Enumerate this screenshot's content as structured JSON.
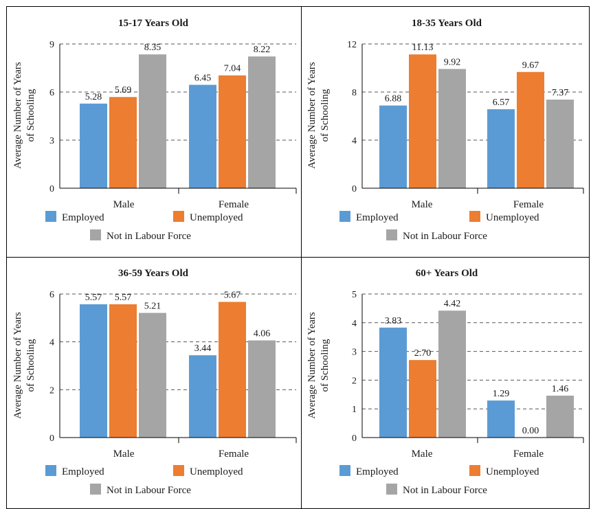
{
  "chart_data": [
    {
      "type": "bar",
      "title": "15-17 Years Old",
      "ylabel": "Average Number of Years of Schooling",
      "ylabel_lines": [
        "Average Number of Years",
        "of Schooling"
      ],
      "categories": [
        "Male",
        "Female"
      ],
      "ylim": [
        0,
        9
      ],
      "yticks": [
        0,
        3,
        6,
        9
      ],
      "grid": true,
      "legend": "bottom",
      "series": [
        {
          "name": "Employed",
          "values": [
            5.28,
            6.45
          ],
          "labels": [
            "5.28",
            "6.45"
          ],
          "color": "#5b9bd5"
        },
        {
          "name": "Unemployed",
          "values": [
            5.69,
            7.04
          ],
          "labels": [
            "5.69",
            "7.04"
          ],
          "color": "#ed7d31"
        },
        {
          "name": "Not in Labour Force",
          "values": [
            8.35,
            8.22
          ],
          "labels": [
            "8.35",
            "8.22"
          ],
          "color": "#a5a5a5"
        }
      ]
    },
    {
      "type": "bar",
      "title": "18-35 Years Old",
      "ylabel": "Average Number of Years of Schooling",
      "ylabel_lines": [
        "Average Number of Years",
        "of Schooling"
      ],
      "categories": [
        "Male",
        "Female"
      ],
      "ylim": [
        0,
        12
      ],
      "yticks": [
        0,
        4,
        8,
        12
      ],
      "grid": true,
      "legend": "bottom",
      "series": [
        {
          "name": "Employed",
          "values": [
            6.88,
            6.57
          ],
          "labels": [
            "6.88",
            "6.57"
          ],
          "color": "#5b9bd5"
        },
        {
          "name": "Unemployed",
          "values": [
            11.13,
            9.67
          ],
          "labels": [
            "11.13",
            "9.67"
          ],
          "color": "#ed7d31"
        },
        {
          "name": "Not in Labour Force",
          "values": [
            9.92,
            7.37
          ],
          "labels": [
            "9.92",
            "7.37"
          ],
          "color": "#a5a5a5"
        }
      ]
    },
    {
      "type": "bar",
      "title": "36-59 Years Old",
      "ylabel": "Average Number of Years of Schooling",
      "ylabel_lines": [
        "Average Number of Years",
        "of Schooling"
      ],
      "categories": [
        "Male",
        "Female"
      ],
      "ylim": [
        0,
        6
      ],
      "yticks": [
        0,
        2,
        4,
        6
      ],
      "grid": true,
      "legend": "bottom",
      "series": [
        {
          "name": "Employed",
          "values": [
            5.57,
            3.44
          ],
          "labels": [
            "5.57",
            "3.44"
          ],
          "color": "#5b9bd5"
        },
        {
          "name": "Unemployed",
          "values": [
            5.57,
            5.67
          ],
          "labels": [
            "5.57",
            "5.67"
          ],
          "color": "#ed7d31"
        },
        {
          "name": "Not in Labour Force",
          "values": [
            5.21,
            4.06
          ],
          "labels": [
            "5.21",
            "4.06"
          ],
          "color": "#a5a5a5"
        }
      ]
    },
    {
      "type": "bar",
      "title": "60+ Years Old",
      "ylabel": "Average Number of Years of Schooling",
      "ylabel_lines": [
        "Average Number of Years",
        "of Schooling"
      ],
      "categories": [
        "Male",
        "Female"
      ],
      "ylim": [
        0,
        5
      ],
      "yticks": [
        0,
        1,
        2,
        3,
        4,
        5
      ],
      "grid": true,
      "legend": "bottom",
      "series": [
        {
          "name": "Employed",
          "values": [
            3.83,
            1.29
          ],
          "labels": [
            "3.83",
            "1.29"
          ],
          "color": "#5b9bd5"
        },
        {
          "name": "Unemployed",
          "values": [
            2.7,
            0.0
          ],
          "labels": [
            "2.70",
            "0.00"
          ],
          "color": "#ed7d31"
        },
        {
          "name": "Not in Labour Force",
          "values": [
            4.42,
            1.46
          ],
          "labels": [
            "4.42",
            "1.46"
          ],
          "color": "#a5a5a5"
        }
      ]
    }
  ]
}
